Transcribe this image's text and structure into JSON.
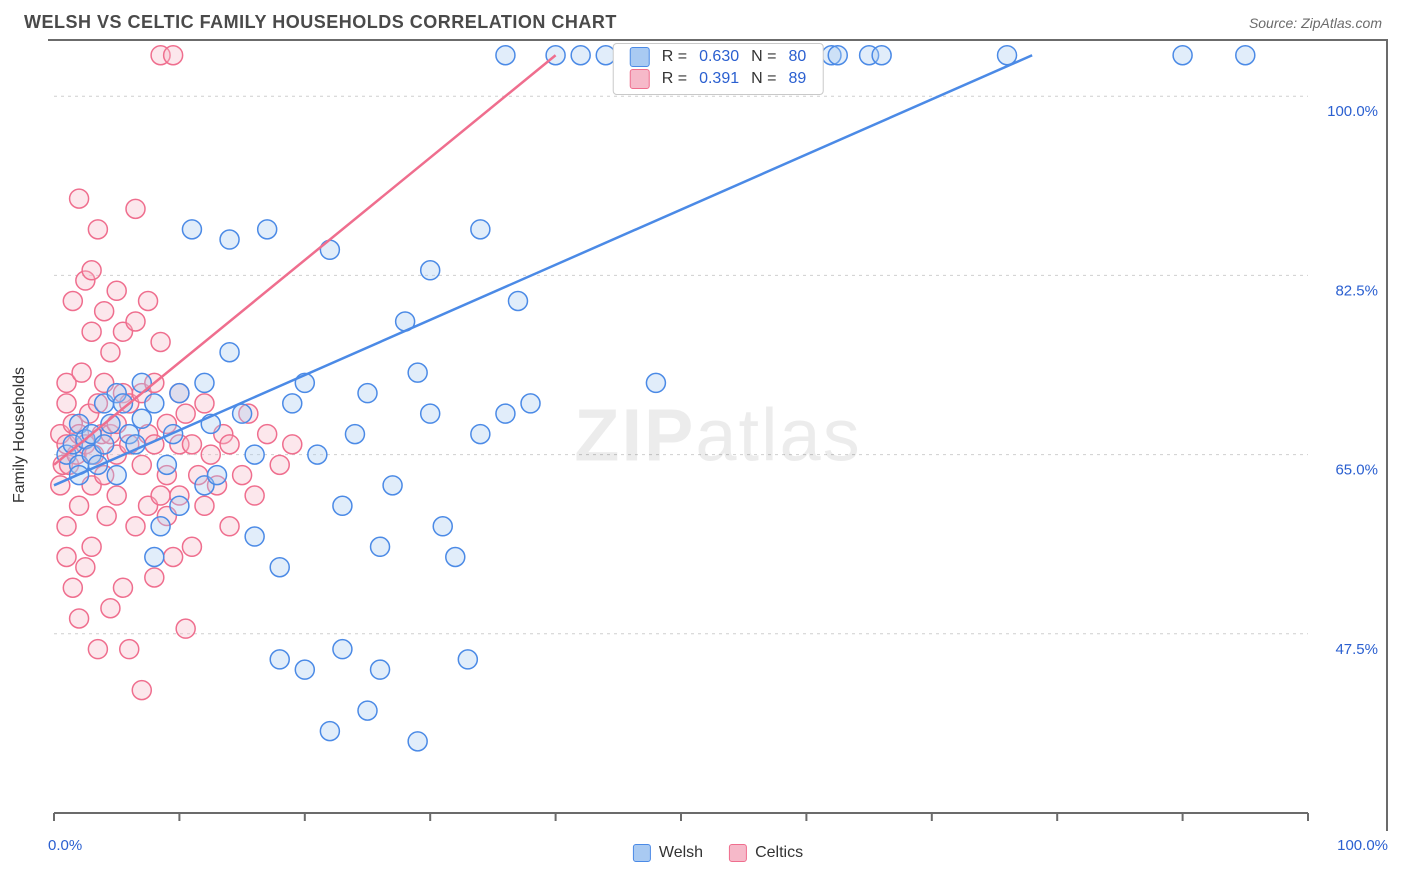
{
  "header": {
    "title": "WELSH VS CELTIC FAMILY HOUSEHOLDS CORRELATION CHART",
    "title_color": "#4a4a4a",
    "source_label": "Source: ",
    "source_value": "ZipAtlas.com",
    "source_color": "#6b6b6b"
  },
  "watermark": {
    "zip": "ZIP",
    "atlas": "atlas"
  },
  "chart": {
    "type": "scatter",
    "background_color": "#ffffff",
    "border_color": "#6b6b6b",
    "grid_color": "#cfcfcf",
    "axis_label_color": "#2a5fd0",
    "text_color": "#333333",
    "point_radius": 9.5,
    "point_fill_opacity": 0.35,
    "trend_linewidth": 2.5,
    "ylabel": "Family Households",
    "xlim": [
      0,
      100
    ],
    "ylim": [
      30,
      105
    ],
    "x_tick_positions": [
      0,
      10,
      20,
      30,
      40,
      50,
      60,
      70,
      80,
      90,
      100
    ],
    "x_tick_label_min": "0.0%",
    "x_tick_label_max": "100.0%",
    "y_ticks": [
      {
        "v": 47.5,
        "label": "47.5%"
      },
      {
        "v": 65.0,
        "label": "65.0%"
      },
      {
        "v": 82.5,
        "label": "82.5%"
      },
      {
        "v": 100.0,
        "label": "100.0%"
      }
    ],
    "series": [
      {
        "name": "Welsh",
        "color": "#4b8ae6",
        "fill": "#a9caf2",
        "R": "0.630",
        "N": "80",
        "trend": {
          "x1": 0,
          "y1": 62,
          "x2": 78,
          "y2": 104
        },
        "points": [
          [
            1,
            65
          ],
          [
            1.5,
            66
          ],
          [
            2,
            64
          ],
          [
            2,
            68
          ],
          [
            2,
            63
          ],
          [
            2.5,
            66.5
          ],
          [
            3,
            65
          ],
          [
            3,
            67
          ],
          [
            3.5,
            64
          ],
          [
            4,
            66
          ],
          [
            4,
            70
          ],
          [
            4.5,
            68
          ],
          [
            5,
            63
          ],
          [
            5,
            71
          ],
          [
            5.5,
            70
          ],
          [
            6,
            67
          ],
          [
            6.5,
            66
          ],
          [
            7,
            68.5
          ],
          [
            7,
            72
          ],
          [
            8,
            55
          ],
          [
            8,
            70
          ],
          [
            8.5,
            58
          ],
          [
            9,
            64
          ],
          [
            9.5,
            67
          ],
          [
            10,
            71
          ],
          [
            10,
            60
          ],
          [
            11,
            87
          ],
          [
            12,
            72
          ],
          [
            12,
            62
          ],
          [
            12.5,
            68
          ],
          [
            13,
            63
          ],
          [
            14,
            75
          ],
          [
            14,
            86
          ],
          [
            15,
            69
          ],
          [
            16,
            57
          ],
          [
            16,
            65
          ],
          [
            17,
            87
          ],
          [
            18,
            54
          ],
          [
            18,
            45
          ],
          [
            19,
            70
          ],
          [
            20,
            72
          ],
          [
            20,
            44
          ],
          [
            21,
            65
          ],
          [
            22,
            85
          ],
          [
            22,
            38
          ],
          [
            23,
            60
          ],
          [
            23,
            46
          ],
          [
            24,
            67
          ],
          [
            25,
            71
          ],
          [
            25,
            40
          ],
          [
            26,
            56
          ],
          [
            26,
            44
          ],
          [
            27,
            62
          ],
          [
            28,
            78
          ],
          [
            29,
            73
          ],
          [
            29,
            37
          ],
          [
            30,
            83
          ],
          [
            30,
            69
          ],
          [
            31,
            58
          ],
          [
            32,
            55
          ],
          [
            33,
            45
          ],
          [
            34,
            67
          ],
          [
            34,
            87
          ],
          [
            36,
            69
          ],
          [
            36,
            104
          ],
          [
            37,
            80
          ],
          [
            38,
            70
          ],
          [
            40,
            104
          ],
          [
            42,
            104
          ],
          [
            44,
            104
          ],
          [
            46,
            104
          ],
          [
            48,
            72
          ],
          [
            56,
            104
          ],
          [
            62,
            104
          ],
          [
            62.5,
            104
          ],
          [
            65,
            104
          ],
          [
            66,
            104
          ],
          [
            76,
            104
          ],
          [
            90,
            104
          ],
          [
            95,
            104
          ]
        ]
      },
      {
        "name": "Celtics",
        "color": "#ef6e8e",
        "fill": "#f6b9c9",
        "R": "0.391",
        "N": "89",
        "trend": {
          "x1": 0,
          "y1": 64,
          "x2": 40,
          "y2": 104
        },
        "points": [
          [
            0.5,
            62
          ],
          [
            0.5,
            67
          ],
          [
            0.7,
            64
          ],
          [
            1,
            55
          ],
          [
            1,
            58
          ],
          [
            1,
            66
          ],
          [
            1,
            70
          ],
          [
            1,
            72
          ],
          [
            1.2,
            64
          ],
          [
            1.5,
            52
          ],
          [
            1.5,
            80
          ],
          [
            1.5,
            68
          ],
          [
            1.8,
            65
          ],
          [
            2,
            49
          ],
          [
            2,
            90
          ],
          [
            2,
            60
          ],
          [
            2,
            67
          ],
          [
            2.2,
            73
          ],
          [
            2.5,
            66
          ],
          [
            2.5,
            82
          ],
          [
            2.5,
            54
          ],
          [
            2.8,
            69
          ],
          [
            3,
            62
          ],
          [
            3,
            77
          ],
          [
            3,
            83
          ],
          [
            3,
            56
          ],
          [
            3.2,
            65
          ],
          [
            3.5,
            70
          ],
          [
            3.5,
            46
          ],
          [
            3.5,
            87
          ],
          [
            3.8,
            67
          ],
          [
            4,
            63
          ],
          [
            4,
            79
          ],
          [
            4,
            72
          ],
          [
            4.2,
            59
          ],
          [
            4.5,
            67
          ],
          [
            4.5,
            50
          ],
          [
            4.5,
            75
          ],
          [
            5,
            68
          ],
          [
            5,
            61
          ],
          [
            5,
            81
          ],
          [
            5,
            65
          ],
          [
            5.5,
            52
          ],
          [
            5.5,
            71
          ],
          [
            5.5,
            77
          ],
          [
            6,
            46
          ],
          [
            6,
            66
          ],
          [
            6,
            70
          ],
          [
            6.5,
            58
          ],
          [
            6.5,
            78
          ],
          [
            6.5,
            89
          ],
          [
            7,
            42
          ],
          [
            7,
            64
          ],
          [
            7,
            71
          ],
          [
            7.5,
            60
          ],
          [
            7.5,
            67
          ],
          [
            7.5,
            80
          ],
          [
            8,
            53
          ],
          [
            8,
            66
          ],
          [
            8,
            72
          ],
          [
            8.5,
            61
          ],
          [
            8.5,
            76
          ],
          [
            8.5,
            104
          ],
          [
            9,
            59
          ],
          [
            9,
            68
          ],
          [
            9,
            63
          ],
          [
            9.5,
            104
          ],
          [
            9.5,
            55
          ],
          [
            10,
            66
          ],
          [
            10,
            71
          ],
          [
            10,
            61
          ],
          [
            10.5,
            48
          ],
          [
            10.5,
            69
          ],
          [
            11,
            56
          ],
          [
            11,
            66
          ],
          [
            11.5,
            63
          ],
          [
            12,
            70
          ],
          [
            12,
            60
          ],
          [
            12.5,
            65
          ],
          [
            13,
            62
          ],
          [
            13.5,
            67
          ],
          [
            14,
            58
          ],
          [
            14,
            66
          ],
          [
            15,
            63
          ],
          [
            15.5,
            69
          ],
          [
            16,
            61
          ],
          [
            17,
            67
          ],
          [
            18,
            64
          ],
          [
            19,
            66
          ]
        ]
      }
    ],
    "legend_top_labels": {
      "Rprefix": "R =",
      "Nprefix": "N ="
    },
    "legend_bottom": [
      {
        "label": "Welsh",
        "swatch_bg": "#a9caf2",
        "swatch_border": "#4b8ae6"
      },
      {
        "label": "Celtics",
        "swatch_bg": "#f6b9c9",
        "swatch_border": "#ef6e8e"
      }
    ]
  }
}
